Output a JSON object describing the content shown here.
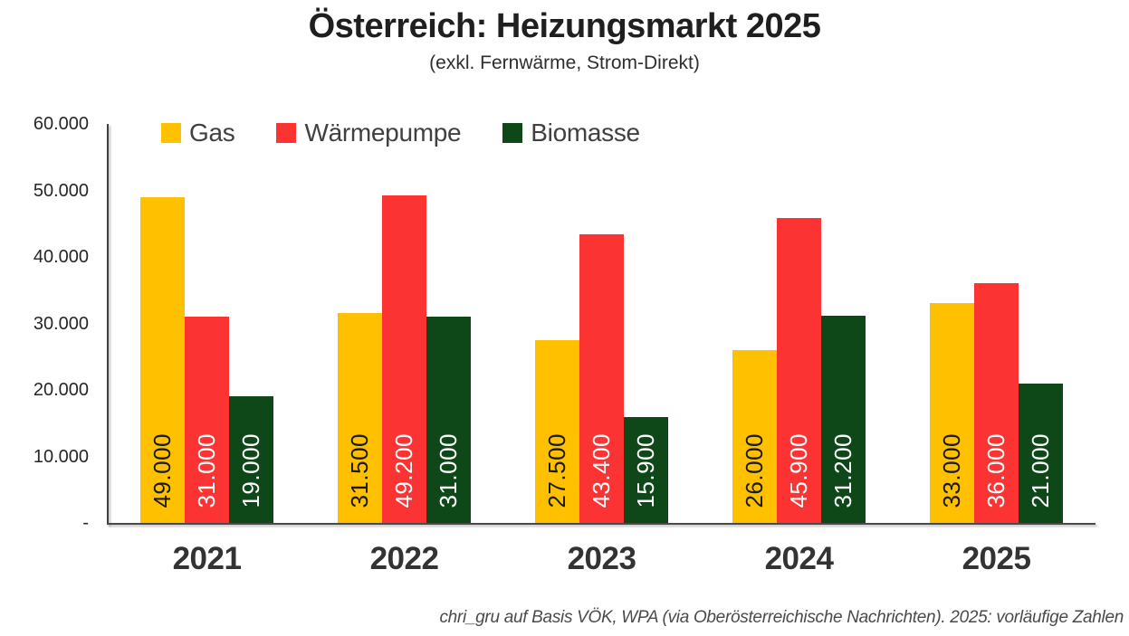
{
  "title": "Österreich: Heizungsmarkt 2025",
  "subtitle": "(exkl. Fernwärme, Strom-Direkt)",
  "source_note": "chri_gru auf Basis VÖK, WPA (via Oberösterreichische Nachrichten). 2025: vorläufige Zahlen",
  "colors": {
    "gas": "#FFC000",
    "waermepumpe": "#FC3333",
    "biomasse": "#0E4718",
    "axis": "#3f3f3f",
    "background": "#ffffff"
  },
  "chart_data": {
    "type": "bar",
    "title": "Österreich: Heizungsmarkt 2025",
    "subtitle": "(exkl. Fernwärme, Strom-Direkt)",
    "categories": [
      "2021",
      "2022",
      "2023",
      "2024",
      "2025"
    ],
    "series": [
      {
        "name": "Gas",
        "color": "#FFC000",
        "label_color": "#1a1a1a",
        "values": [
          49000,
          31500,
          27500,
          26000,
          33000
        ],
        "labels": [
          "49.000",
          "31.500",
          "27.500",
          "26.000",
          "33.000"
        ]
      },
      {
        "name": "Wärmepumpe",
        "color": "#FC3333",
        "label_color": "#ffffff",
        "values": [
          31000,
          49200,
          43400,
          45900,
          36000
        ],
        "labels": [
          "31.000",
          "49.200",
          "43.400",
          "45.900",
          "36.000"
        ]
      },
      {
        "name": "Biomasse",
        "color": "#0E4718",
        "label_color": "#ffffff",
        "values": [
          19000,
          31000,
          15900,
          31200,
          21000
        ],
        "labels": [
          "19.000",
          "31.000",
          "15.900",
          "31.200",
          "21.000"
        ]
      }
    ],
    "xlabel": "",
    "ylabel": "",
    "ylim": [
      0,
      60000
    ],
    "y_tick_labels": [
      "60.000",
      "50.000",
      "40.000",
      "30.000",
      "20.000",
      "10.000",
      "-"
    ],
    "grid": false,
    "legend_position": "top-left-inside",
    "data_labels": "rotated-90-inside-base"
  }
}
